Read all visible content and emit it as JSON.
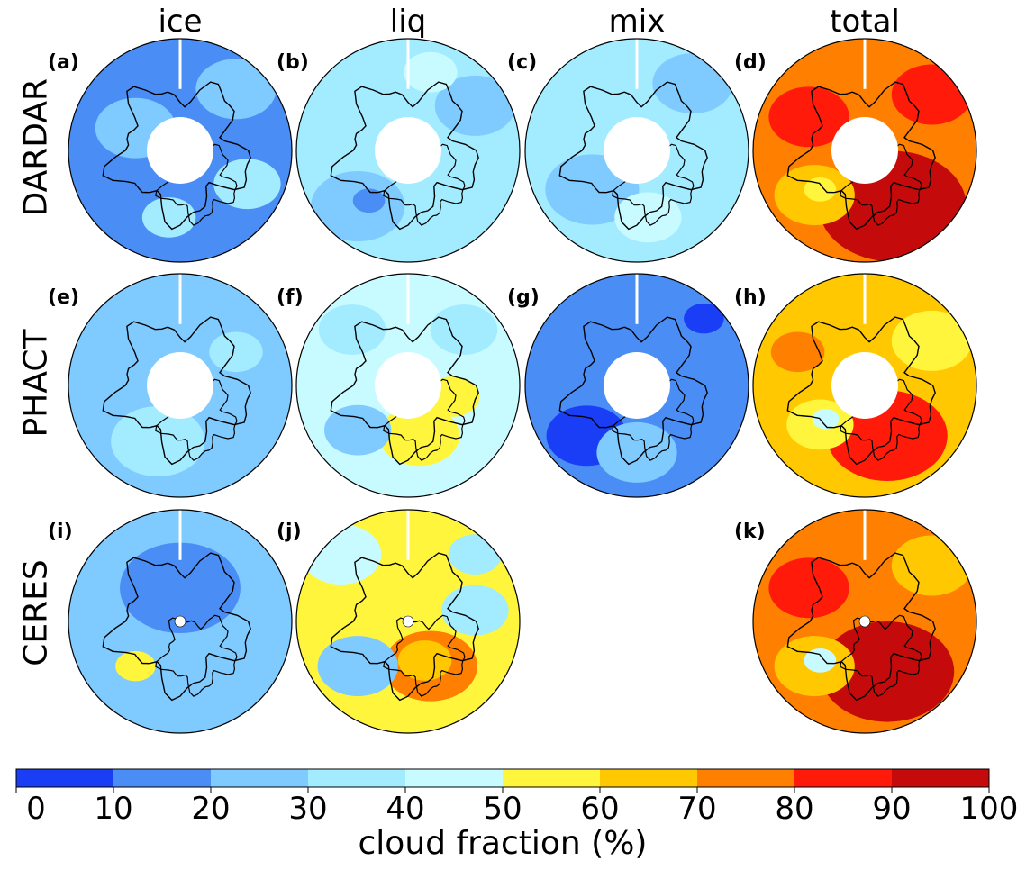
{
  "columns": [
    "ice",
    "liq",
    "mix",
    "total"
  ],
  "rows": [
    "DARDAR",
    "PHACT",
    "CERES"
  ],
  "panels": [
    {
      "label": "(a)",
      "row": 0,
      "col": 0,
      "base": 1,
      "patches": [
        [
          0.5,
          0.55,
          0.3,
          2
        ],
        [
          -0.4,
          0.2,
          0.3,
          2
        ],
        [
          0.6,
          -0.3,
          0.25,
          3
        ],
        [
          -0.1,
          -0.6,
          0.2,
          3
        ]
      ],
      "hole": "large"
    },
    {
      "label": "(b)",
      "row": 0,
      "col": 1,
      "base": 3,
      "patches": [
        [
          -0.45,
          -0.5,
          0.35,
          2
        ],
        [
          -0.35,
          -0.45,
          0.12,
          1
        ],
        [
          0.6,
          0.4,
          0.3,
          2
        ],
        [
          0.2,
          0.7,
          0.2,
          4
        ]
      ],
      "hole": "large"
    },
    {
      "label": "(c)",
      "row": 0,
      "col": 2,
      "base": 3,
      "patches": [
        [
          -0.4,
          -0.35,
          0.35,
          2
        ],
        [
          0.5,
          0.6,
          0.3,
          2
        ],
        [
          0.1,
          -0.6,
          0.25,
          4
        ]
      ],
      "hole": "large"
    },
    {
      "label": "(d)",
      "row": 0,
      "col": 3,
      "base": 7,
      "patches": [
        [
          0.25,
          -0.5,
          0.55,
          9
        ],
        [
          -0.45,
          -0.4,
          0.3,
          6
        ],
        [
          -0.5,
          0.3,
          0.3,
          8
        ],
        [
          0.6,
          0.5,
          0.3,
          8
        ],
        [
          -0.4,
          -0.35,
          0.12,
          5
        ]
      ],
      "hole": "large"
    },
    {
      "label": "(e)",
      "row": 1,
      "col": 0,
      "base": 2,
      "patches": [
        [
          -0.2,
          -0.5,
          0.35,
          3
        ],
        [
          0.5,
          0.3,
          0.2,
          3
        ]
      ],
      "hole": "large"
    },
    {
      "label": "(f)",
      "row": 1,
      "col": 1,
      "base": 4,
      "patches": [
        [
          0.1,
          -0.45,
          0.3,
          5
        ],
        [
          -0.45,
          -0.4,
          0.25,
          2
        ],
        [
          0.4,
          -0.1,
          0.2,
          5
        ],
        [
          -0.5,
          0.5,
          0.25,
          3
        ],
        [
          0.5,
          0.5,
          0.25,
          3
        ]
      ],
      "hole": "large"
    },
    {
      "label": "(g)",
      "row": 1,
      "col": 2,
      "base": 1,
      "patches": [
        [
          -0.45,
          -0.45,
          0.3,
          0
        ],
        [
          0.6,
          0.6,
          0.15,
          0
        ],
        [
          0.0,
          -0.6,
          0.3,
          2
        ]
      ],
      "hole": "large"
    },
    {
      "label": "(h)",
      "row": 1,
      "col": 3,
      "base": 6,
      "patches": [
        [
          0.2,
          -0.45,
          0.45,
          8
        ],
        [
          -0.4,
          -0.35,
          0.25,
          5
        ],
        [
          -0.35,
          -0.3,
          0.1,
          4
        ],
        [
          0.6,
          0.4,
          0.3,
          5
        ],
        [
          -0.6,
          0.3,
          0.2,
          7
        ]
      ],
      "hole": "large"
    },
    {
      "label": "(i)",
      "row": 2,
      "col": 0,
      "base": 2,
      "patches": [
        [
          0.0,
          0.3,
          0.45,
          1
        ],
        [
          -0.4,
          -0.4,
          0.15,
          5
        ],
        [
          0.4,
          -0.5,
          0.3,
          2
        ]
      ],
      "hole": "small"
    },
    {
      "label": "(j)",
      "row": 2,
      "col": 1,
      "base": 5,
      "patches": [
        [
          0.2,
          -0.4,
          0.35,
          7
        ],
        [
          0.15,
          -0.35,
          0.2,
          6
        ],
        [
          -0.45,
          -0.4,
          0.3,
          2
        ],
        [
          0.6,
          0.1,
          0.25,
          3
        ],
        [
          -0.6,
          0.6,
          0.3,
          4
        ],
        [
          0.6,
          0.6,
          0.2,
          3
        ]
      ],
      "hole": "small"
    },
    {
      "label": "(k)",
      "row": 2,
      "col": 3,
      "base": 7,
      "patches": [
        [
          0.2,
          -0.45,
          0.5,
          9
        ],
        [
          -0.45,
          -0.4,
          0.3,
          6
        ],
        [
          -0.4,
          -0.35,
          0.12,
          4
        ],
        [
          0.6,
          0.5,
          0.3,
          6
        ],
        [
          -0.5,
          0.3,
          0.3,
          8
        ]
      ],
      "hole": "small"
    }
  ],
  "colorbar": {
    "ticks": [
      "0",
      "10",
      "20",
      "30",
      "40",
      "50",
      "60",
      "70",
      "80",
      "90",
      "100"
    ],
    "colors": [
      "#1a3ef5",
      "#4a8ef5",
      "#7fcaff",
      "#a3ebff",
      "#c8fbff",
      "#fff53c",
      "#ffc800",
      "#ff8000",
      "#ff1a0a",
      "#c40a0a"
    ],
    "label": "cloud fraction (%)"
  }
}
